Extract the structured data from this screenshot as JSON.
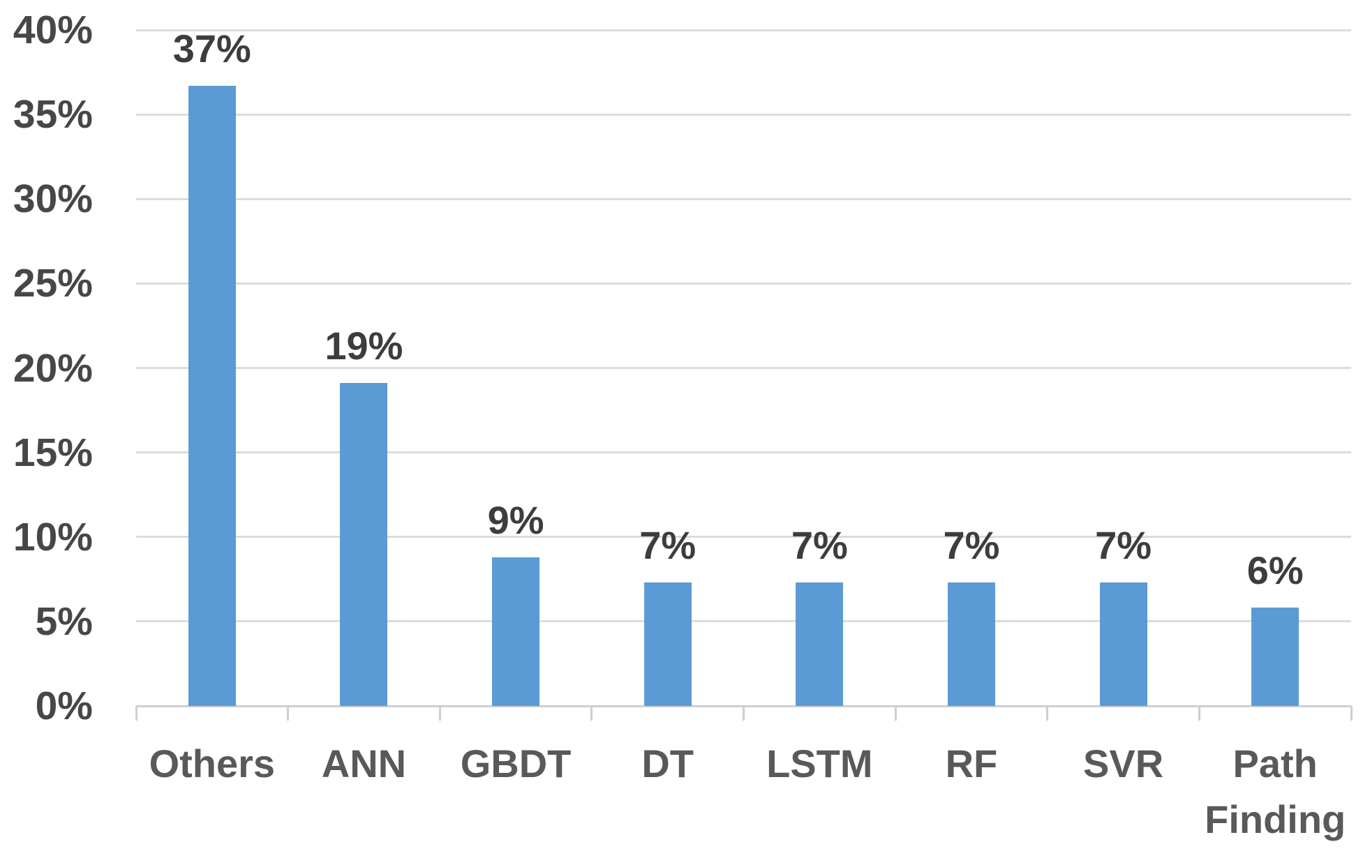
{
  "colors": {
    "background": "#ffffff",
    "bar_fill": "#5b9bd5",
    "gridline": "#dcdcdc",
    "axis_line": "#cfcfcf",
    "y_tick_label_text": "#474747",
    "data_label_text": "#3d3d3d",
    "category_label_text": "#595959"
  },
  "chart_data": {
    "type": "bar",
    "title": "",
    "xlabel": "",
    "ylabel": "",
    "categories": [
      "Others",
      "ANN",
      "GBDT",
      "DT",
      "LSTM",
      "RF",
      "SVR",
      "Path Finding"
    ],
    "values": [
      37,
      19,
      9,
      7,
      7,
      7,
      7,
      6
    ],
    "data_labels": [
      "37%",
      "19%",
      "9%",
      "7%",
      "7%",
      "7%",
      "7%",
      "6%"
    ],
    "bar_heights_pct": [
      36.7,
      19.1,
      8.8,
      7.3,
      7.3,
      7.3,
      7.3,
      5.8
    ],
    "y_axis": {
      "min": 0,
      "max": 40,
      "step": 5,
      "tick_labels": [
        "0%",
        "5%",
        "10%",
        "15%",
        "20%",
        "25%",
        "30%",
        "35%",
        "40%"
      ],
      "format": "percent"
    },
    "grid": true,
    "legend": false,
    "bar_color": "#5b9bd5"
  }
}
